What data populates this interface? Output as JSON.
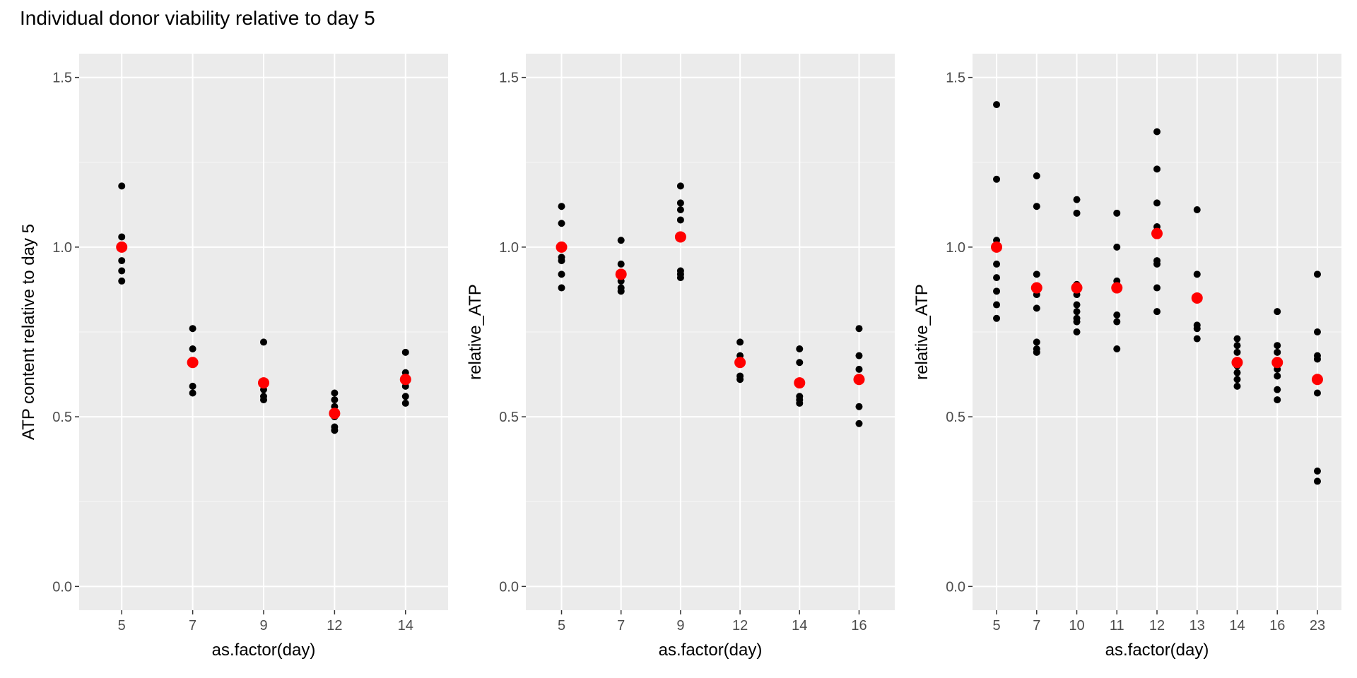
{
  "figure": {
    "title": "Individual donor viability relative to day 5"
  },
  "colors": {
    "panel_background": "#ebebeb",
    "grid_major": "#ffffff",
    "grid_minor": "#f5f5f5",
    "points": "#000000",
    "mean_points": "#ff0000"
  },
  "chart_data": [
    {
      "type": "scatter",
      "xlabel": "as.factor(day)",
      "ylabel": "ATP content relative to day 5",
      "ylim": [
        -0.07,
        1.57
      ],
      "yticks": [
        0.0,
        0.5,
        1.0,
        1.5
      ],
      "ytick_labels": [
        "0.0",
        "0.5",
        "1.0",
        "1.5"
      ],
      "grid": true,
      "categories": [
        "5",
        "7",
        "9",
        "12",
        "14"
      ],
      "series": [
        {
          "values": [
            [
              1.18,
              1.03,
              0.96,
              0.93,
              0.9
            ],
            [
              0.76,
              0.7,
              0.59,
              0.57
            ],
            [
              0.72,
              0.58,
              0.56,
              0.55
            ],
            [
              0.57,
              0.55,
              0.53,
              0.5,
              0.47,
              0.46
            ],
            [
              0.69,
              0.63,
              0.59,
              0.56,
              0.54
            ]
          ]
        },
        {
          "values": [
            1.0,
            0.66,
            0.6,
            0.51,
            0.61
          ]
        }
      ]
    },
    {
      "type": "scatter",
      "xlabel": "as.factor(day)",
      "ylabel": "relative_ATP",
      "ylim": [
        -0.07,
        1.57
      ],
      "yticks": [
        0.0,
        0.5,
        1.0,
        1.5
      ],
      "ytick_labels": [
        "0.0",
        "0.5",
        "1.0",
        "1.5"
      ],
      "grid": true,
      "categories": [
        "5",
        "7",
        "9",
        "12",
        "14",
        "16"
      ],
      "series": [
        {
          "values": [
            [
              1.12,
              1.07,
              0.97,
              0.96,
              0.92,
              0.88
            ],
            [
              1.02,
              0.95,
              0.9,
              0.88,
              0.87
            ],
            [
              1.18,
              1.13,
              1.11,
              1.08,
              0.93,
              0.92,
              0.91
            ],
            [
              0.72,
              0.68,
              0.62,
              0.61
            ],
            [
              0.7,
              0.66,
              0.56,
              0.55,
              0.54
            ],
            [
              0.76,
              0.68,
              0.64,
              0.53,
              0.48
            ]
          ]
        },
        {
          "values": [
            1.0,
            0.92,
            1.03,
            0.66,
            0.6,
            0.61
          ]
        }
      ]
    },
    {
      "type": "scatter",
      "xlabel": "as.factor(day)",
      "ylabel": "relative_ATP",
      "ylim": [
        -0.07,
        1.57
      ],
      "yticks": [
        0.0,
        0.5,
        1.0,
        1.5
      ],
      "ytick_labels": [
        "0.0",
        "0.5",
        "1.0",
        "1.5"
      ],
      "grid": true,
      "categories": [
        "5",
        "7",
        "10",
        "11",
        "12",
        "13",
        "14",
        "16",
        "23"
      ],
      "series": [
        {
          "values": [
            [
              1.42,
              1.2,
              1.02,
              0.95,
              0.91,
              0.87,
              0.83,
              0.79
            ],
            [
              1.21,
              1.12,
              0.92,
              0.86,
              0.82,
              0.72,
              0.7,
              0.69
            ],
            [
              1.14,
              1.1,
              0.89,
              0.86,
              0.83,
              0.81,
              0.79,
              0.78,
              0.75
            ],
            [
              1.1,
              1.0,
              0.9,
              0.8,
              0.78,
              0.7
            ],
            [
              1.34,
              1.23,
              1.13,
              1.06,
              0.96,
              0.95,
              0.88,
              0.81
            ],
            [
              1.11,
              0.92,
              0.85,
              0.77,
              0.76,
              0.73
            ],
            [
              0.73,
              0.71,
              0.69,
              0.65,
              0.63,
              0.61,
              0.59
            ],
            [
              0.81,
              0.71,
              0.69,
              0.64,
              0.62,
              0.58,
              0.55
            ],
            [
              0.92,
              0.75,
              0.68,
              0.67,
              0.57,
              0.34,
              0.31
            ]
          ]
        },
        {
          "values": [
            1.0,
            0.88,
            0.88,
            0.88,
            1.04,
            0.85,
            0.66,
            0.66,
            0.61
          ]
        }
      ]
    }
  ]
}
